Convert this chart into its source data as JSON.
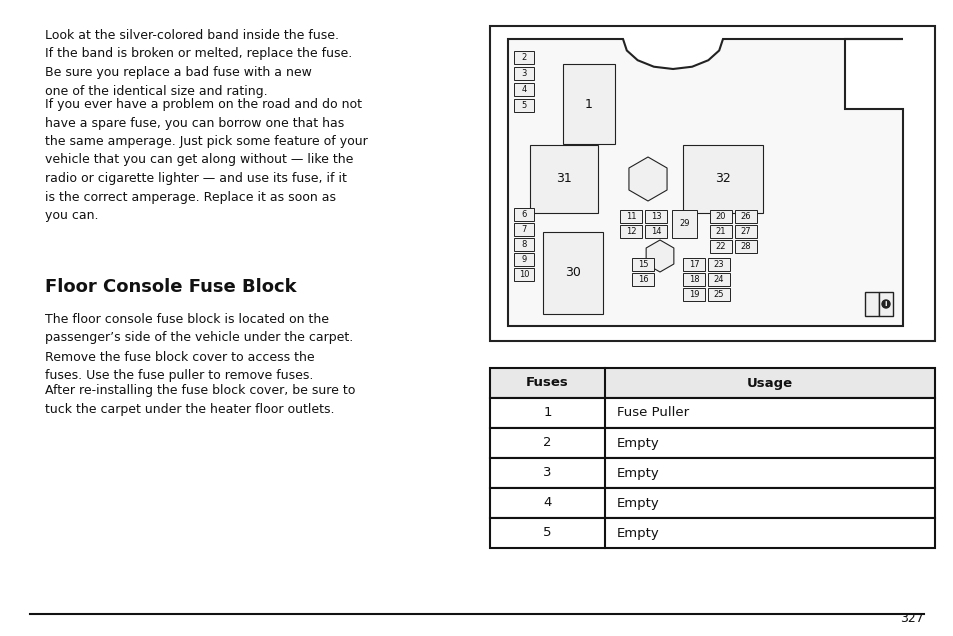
{
  "bg_color": "#ffffff",
  "page_number": "327",
  "paragraph1": "Look at the silver-colored band inside the fuse.\nIf the band is broken or melted, replace the fuse.\nBe sure you replace a bad fuse with a new\none of the identical size and rating.",
  "paragraph2": "If you ever have a problem on the road and do not\nhave a spare fuse, you can borrow one that has\nthe same amperage. Just pick some feature of your\nvehicle that you can get along without — like the\nradio or cigarette lighter — and use its fuse, if it\nis the correct amperage. Replace it as soon as\nyou can.",
  "section_title": "Floor Console Fuse Block",
  "paragraph3": "The floor console fuse block is located on the\npassenger’s side of the vehicle under the carpet.",
  "paragraph4": "Remove the fuse block cover to access the\nfuses. Use the fuse puller to remove fuses.",
  "paragraph5": "After re-installing the fuse block cover, be sure to\ntuck the carpet under the heater floor outlets.",
  "table_headers": [
    "Fuses",
    "Usage"
  ],
  "table_rows": [
    [
      "1",
      "Fuse Puller"
    ],
    [
      "2",
      "Empty"
    ],
    [
      "3",
      "Empty"
    ],
    [
      "4",
      "Empty"
    ],
    [
      "5",
      "Empty"
    ]
  ]
}
